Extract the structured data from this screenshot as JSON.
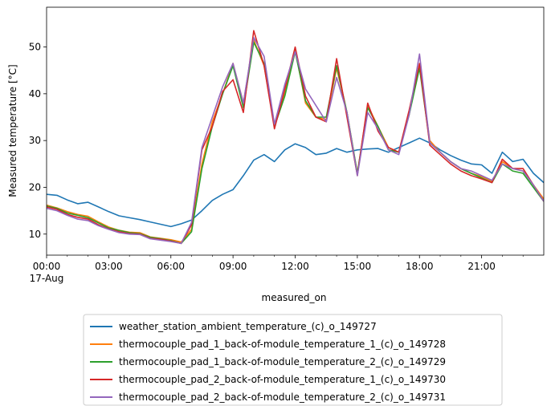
{
  "chart_data": {
    "type": "line",
    "title": "",
    "xlabel": "measured_on",
    "ylabel": "Measured temperature [°C]",
    "x_unit": "hours after 00:00 17-Aug",
    "xlim": [
      0,
      24
    ],
    "ylim": [
      5.5,
      58.5
    ],
    "x_tick_labels": [
      "00:00\n17-Aug",
      "03:00",
      "06:00",
      "09:00",
      "12:00",
      "15:00",
      "18:00",
      "21:00"
    ],
    "y_ticks": [
      10,
      20,
      30,
      40,
      50
    ],
    "grid": false,
    "legend_position": "below plot",
    "x": [
      0,
      0.5,
      1,
      1.5,
      2,
      2.5,
      3,
      3.5,
      4,
      4.5,
      5,
      5.5,
      6,
      6.5,
      7,
      7.5,
      8,
      8.5,
      9,
      9.5,
      10,
      10.5,
      11,
      11.5,
      12,
      12.5,
      13,
      13.5,
      14,
      14.5,
      15,
      15.5,
      16,
      16.5,
      17,
      17.5,
      18,
      18.5,
      19,
      19.5,
      20,
      20.5,
      21,
      21.5,
      22,
      22.5,
      23,
      23.5,
      24
    ],
    "series": [
      {
        "name": "weather_station_ambient_temperature_(c)_o_149727",
        "color": "#1f77b4",
        "values": [
          18.5,
          18.3,
          17.3,
          16.5,
          16.8,
          15.8,
          14.8,
          13.9,
          13.5,
          13.1,
          12.6,
          12.1,
          11.6,
          12.2,
          13.0,
          15.0,
          17.2,
          18.5,
          19.5,
          22.5,
          25.8,
          27.0,
          25.5,
          28.0,
          29.3,
          28.5,
          27.0,
          27.3,
          28.3,
          27.5,
          28.0,
          28.2,
          28.3,
          27.5,
          28.5,
          29.5,
          30.5,
          29.5,
          28.0,
          26.8,
          25.8,
          25.0,
          24.8,
          23.0,
          27.5,
          25.5,
          26.0,
          23.0,
          21.0
        ]
      },
      {
        "name": "thermocouple_pad_1_back-of-module_temperature_1_(c)_o_149728",
        "color": "#ff7f0e",
        "values": [
          16.2,
          15.6,
          14.8,
          14.2,
          13.8,
          12.6,
          11.5,
          10.8,
          10.4,
          10.3,
          9.4,
          9.1,
          8.8,
          8.3,
          11.0,
          25.0,
          34.0,
          40.0,
          46.5,
          38.0,
          51.5,
          46.0,
          33.0,
          40.0,
          49.5,
          38.0,
          35.0,
          34.5,
          45.5,
          36.0,
          23.0,
          37.5,
          33.0,
          28.5,
          27.5,
          36.0,
          46.0,
          30.0,
          27.5,
          25.5,
          24.0,
          23.0,
          22.3,
          21.3,
          25.5,
          24.0,
          23.5,
          20.5,
          17.5
        ]
      },
      {
        "name": "thermocouple_pad_1_back-of-module_temperature_2_(c)_o_149729",
        "color": "#2ca02c",
        "values": [
          16.0,
          15.5,
          14.5,
          14.0,
          13.5,
          12.4,
          11.3,
          10.8,
          10.3,
          10.1,
          9.3,
          9.0,
          8.6,
          8.0,
          10.5,
          24.0,
          33.0,
          40.0,
          46.0,
          37.0,
          51.0,
          46.5,
          33.0,
          39.5,
          49.0,
          38.5,
          35.0,
          35.0,
          46.0,
          36.0,
          23.0,
          37.0,
          33.0,
          28.0,
          27.5,
          35.5,
          45.5,
          29.5,
          27.5,
          25.5,
          24.0,
          23.0,
          22.0,
          21.0,
          25.0,
          23.5,
          23.0,
          20.0,
          17.0
        ]
      },
      {
        "name": "thermocouple_pad_2_back-of-module_temperature_1_(c)_o_149730",
        "color": "#d62728",
        "values": [
          15.8,
          15.3,
          14.2,
          13.6,
          13.2,
          12.0,
          11.1,
          10.5,
          10.1,
          10.0,
          9.1,
          8.9,
          8.5,
          8.0,
          12.0,
          28.0,
          33.0,
          40.5,
          43.0,
          36.0,
          53.5,
          46.0,
          32.5,
          41.0,
          50.0,
          39.5,
          35.0,
          34.0,
          47.5,
          35.0,
          22.5,
          38.0,
          32.0,
          28.5,
          27.5,
          36.5,
          46.5,
          29.0,
          27.0,
          25.0,
          23.5,
          22.5,
          21.8,
          21.0,
          26.0,
          24.0,
          24.0,
          20.5,
          17.0
        ]
      },
      {
        "name": "thermocouple_pad_2_back-of-module_temperature_2_(c)_o_149731",
        "color": "#9467bd",
        "values": [
          15.5,
          15.0,
          14.0,
          13.2,
          12.9,
          11.8,
          11.0,
          10.3,
          10.0,
          9.9,
          9.0,
          8.7,
          8.4,
          8.0,
          12.5,
          28.5,
          35.0,
          41.5,
          46.5,
          38.0,
          52.0,
          48.0,
          33.5,
          42.0,
          49.0,
          41.0,
          37.5,
          34.0,
          43.5,
          36.0,
          22.5,
          36.0,
          32.5,
          28.0,
          27.0,
          35.5,
          48.5,
          29.5,
          27.5,
          25.5,
          24.0,
          23.5,
          22.5,
          21.5,
          25.0,
          24.0,
          23.5,
          20.5,
          17.0
        ]
      }
    ]
  }
}
